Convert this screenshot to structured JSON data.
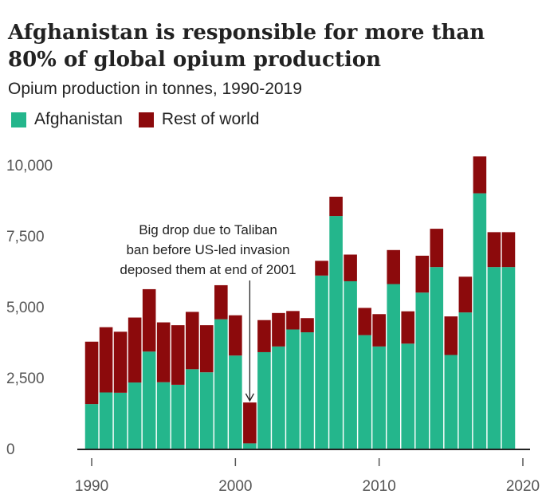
{
  "chart_data": {
    "type": "bar",
    "stacked": true,
    "title": "Afghanistan is responsible for more than 80% of global opium production",
    "subtitle": "Opium production in tonnes, 1990-2019",
    "x": [
      1990,
      1991,
      1992,
      1993,
      1994,
      1995,
      1996,
      1997,
      1998,
      1999,
      2000,
      2001,
      2002,
      2003,
      2004,
      2005,
      2006,
      2007,
      2008,
      2009,
      2010,
      2011,
      2012,
      2013,
      2014,
      2015,
      2016,
      2017,
      2018,
      2019
    ],
    "series": [
      {
        "name": "Afghanistan",
        "color": "#24b68c",
        "values": [
          1570,
          1980,
          1970,
          2330,
          3420,
          2340,
          2250,
          2800,
          2690,
          4560,
          3280,
          185,
          3400,
          3600,
          4200,
          4100,
          6100,
          8200,
          5900,
          4000,
          3600,
          5800,
          3700,
          5500,
          6400,
          3300,
          4800,
          9000,
          6400,
          6400
        ]
      },
      {
        "name": "Rest of world",
        "color": "#8c0a0c",
        "values": [
          2200,
          2300,
          2150,
          2290,
          2200,
          2110,
          2100,
          2020,
          1660,
          1200,
          1420,
          1440,
          1130,
          1180,
          650,
          500,
          520,
          680,
          940,
          960,
          1140,
          1200,
          1140,
          1300,
          1350,
          1360,
          1260,
          1300,
          1230,
          1230
        ]
      }
    ],
    "ylim": [
      0,
      10500
    ],
    "xlim": [
      1989,
      2020.5
    ],
    "y_ticks": [
      0,
      2500,
      5000,
      7500,
      10000
    ],
    "y_tick_labels": [
      "0",
      "2,500",
      "5,000",
      "7,500",
      "10,000"
    ],
    "x_ticks": [
      1990,
      2000,
      2010,
      2020
    ],
    "x_tick_labels": [
      "1990",
      "2000",
      "2010",
      "2020"
    ],
    "grid": false,
    "legend_position": "top-left",
    "annotation": {
      "lines": [
        "Big drop due to Taliban",
        "ban before US-led invasion",
        "deposed them at end of 2001"
      ],
      "x": 2001
    }
  }
}
